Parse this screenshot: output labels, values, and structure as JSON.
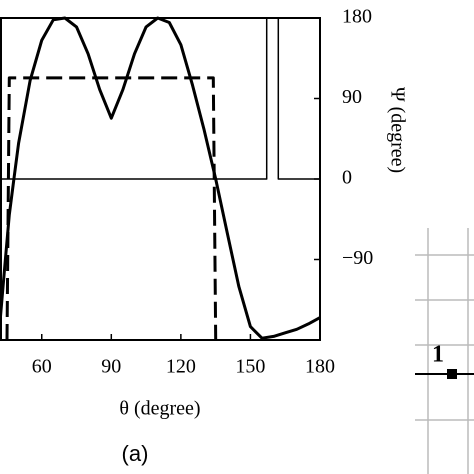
{
  "chart_data": {
    "type": "line",
    "x_label": "θ (degree)",
    "y_label": "Ψ (degree)",
    "caption": "(a)",
    "xlim": [
      42,
      180
    ],
    "xticks": [
      60,
      90,
      120,
      150,
      180
    ],
    "y2lim": [
      -180,
      180
    ],
    "y2ticks": [
      180,
      90,
      0,
      {
        "value": -90,
        "label": "−90"
      }
    ],
    "series": [
      {
        "color": "#000000",
        "style": "solid",
        "width": 3,
        "axis": "y2",
        "x": [
          42,
          44,
          46,
          48,
          50,
          55,
          60,
          65,
          70,
          75,
          80,
          85,
          90,
          95,
          100,
          105,
          110,
          115,
          120,
          125,
          130,
          135,
          140,
          145,
          150,
          155,
          160,
          165,
          170,
          175,
          180
        ],
        "values": [
          -160,
          -100,
          -40,
          0,
          40,
          110,
          155,
          178,
          180,
          170,
          140,
          100,
          68,
          100,
          140,
          170,
          180,
          175,
          150,
          105,
          55,
          0,
          -60,
          -120,
          -165,
          -178,
          -176,
          -172,
          -168,
          -162,
          -155
        ]
      },
      {
        "color": "#000000",
        "style": "dashed",
        "width": 3,
        "axis": "y2",
        "x": [
          45,
          46,
          134,
          135
        ],
        "values": [
          -180,
          113,
          113,
          -180
        ]
      },
      {
        "color": "#000000",
        "style": "solid",
        "width": 1.5,
        "axis": "y2",
        "x": [
          42,
          157,
          157,
          null,
          162,
          162,
          180
        ],
        "values": [
          0,
          0,
          180,
          null,
          180,
          0,
          0
        ]
      }
    ]
  },
  "panel_b": {
    "label": "1"
  }
}
